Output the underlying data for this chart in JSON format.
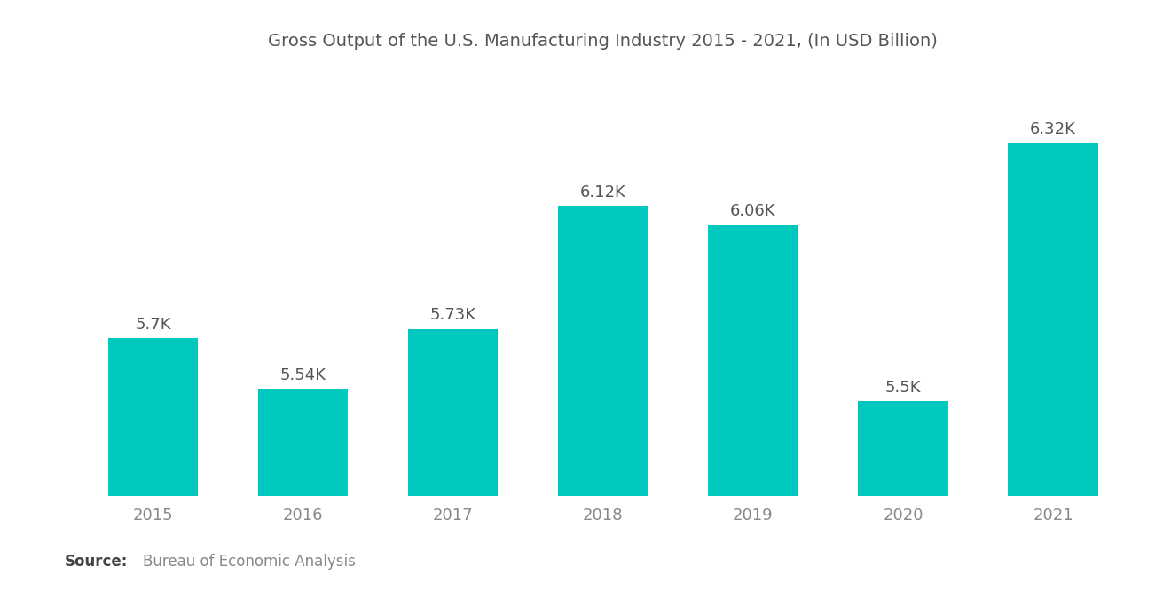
{
  "title": "Gross Output of the U.S. Manufacturing Industry 2015 - 2021, (In USD Billion)",
  "categories": [
    "2015",
    "2016",
    "2017",
    "2018",
    "2019",
    "2020",
    "2021"
  ],
  "values": [
    5700,
    5540,
    5730,
    6120,
    6060,
    5500,
    6320
  ],
  "labels": [
    "5.7K",
    "5.54K",
    "5.73K",
    "6.12K",
    "6.06K",
    "5.5K",
    "6.32K"
  ],
  "bar_color": "#00C8BC",
  "background_color": "#ffffff",
  "title_color": "#555555",
  "label_color": "#555555",
  "tick_color": "#888888",
  "source_bold": "Source:",
  "source_text": "Bureau of Economic Analysis",
  "ylim_min": 5200,
  "ylim_max": 6550,
  "title_fontsize": 14,
  "label_fontsize": 13,
  "tick_fontsize": 13,
  "source_fontsize": 12,
  "bar_width": 0.6
}
